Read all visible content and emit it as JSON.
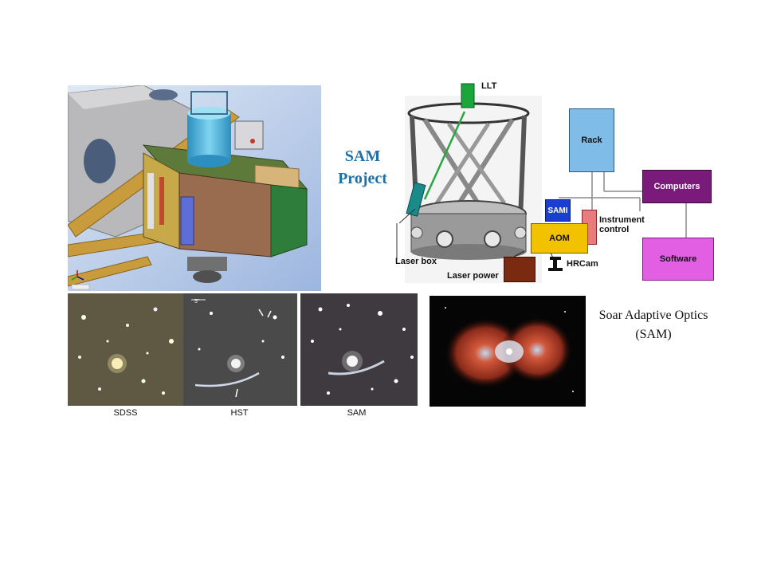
{
  "title": {
    "line1": "SAM",
    "line2": "Project"
  },
  "caption": {
    "line1": "Soar Adaptive Optics",
    "line2": "(SAM)"
  },
  "comparison_labels": [
    "SDSS",
    "HST",
    "SAM"
  ],
  "hst_scale_label": "5\"",
  "diagram": {
    "llt": "LLT",
    "rack": "Rack",
    "computers": "Computers",
    "sami": "SAMI",
    "instrument_control_1": "Instrument",
    "instrument_control_2": "control",
    "aom": "AOM",
    "software": "Software",
    "laser_box": "Laser box",
    "hrcam": "HRCam",
    "laser_power": "Laser power"
  },
  "colors": {
    "title": "#1f6fa8",
    "rack": "#7fbde8",
    "computers": "#7a1a7a",
    "software": "#e25ee2",
    "aom": "#f2c200",
    "sami": "#1a3fd0",
    "instrument_control": "#e87b7b",
    "laser_power": "#7a2a10",
    "llt": "#1aa63a"
  }
}
